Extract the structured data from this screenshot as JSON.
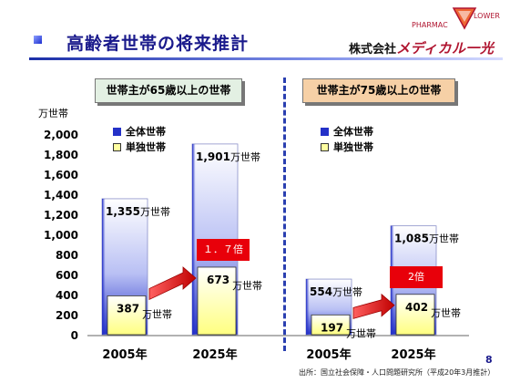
{
  "header": {
    "title": "高齢者世帯の将来推計",
    "company_prefix": "株式会社",
    "company_brand": "メディカル一光",
    "logo_top": "PHARMAC",
    "logo_right": "LOWER"
  },
  "categories_header": {
    "left": "世帯主が65歳以上の世帯",
    "right": "世帯主が75歳以上の世帯"
  },
  "unit_label": "万世帯",
  "footer": {
    "source": "出所：国立社会保障・人口問題研究所（平成20年3月推計）",
    "page": "8"
  },
  "ratios": [
    "１．７倍",
    "2倍"
  ],
  "colors": {
    "total": "#2431c8",
    "single": "#ffffa0",
    "ratio": "#e8000a",
    "title": "#1a1a8c"
  },
  "chart_data": {
    "type": "bar",
    "ylabel": "万世帯",
    "ylim": [
      0,
      2000
    ],
    "yticks": [
      "0",
      "200",
      "400",
      "600",
      "800",
      "1,000",
      "1,200",
      "1,400",
      "1,600",
      "1,800",
      "2,000"
    ],
    "groups": [
      {
        "panel": "世帯主が65歳以上の世帯",
        "categories": [
          "2005年",
          "2025年"
        ],
        "series": [
          {
            "name": "全体世帯",
            "values": [
              1355,
              1901
            ],
            "labels": [
              "1,355",
              "1,901"
            ]
          },
          {
            "name": "単独世帯",
            "values": [
              387,
              673
            ],
            "labels": [
              "387",
              "673"
            ]
          }
        ],
        "ratio": "１．７倍"
      },
      {
        "panel": "世帯主が75歳以上の世帯",
        "categories": [
          "2005年",
          "2025年"
        ],
        "series": [
          {
            "name": "全体世帯",
            "values": [
              554,
              1085
            ],
            "labels": [
              "554",
              "1,085"
            ]
          },
          {
            "name": "単独世帯",
            "values": [
              197,
              402
            ],
            "labels": [
              "197",
              "402"
            ]
          }
        ],
        "ratio": "2倍"
      }
    ],
    "value_unit": "万世帯",
    "legend": [
      "全体世帯",
      "単独世帯"
    ],
    "legend_position": "top-left of each panel"
  }
}
